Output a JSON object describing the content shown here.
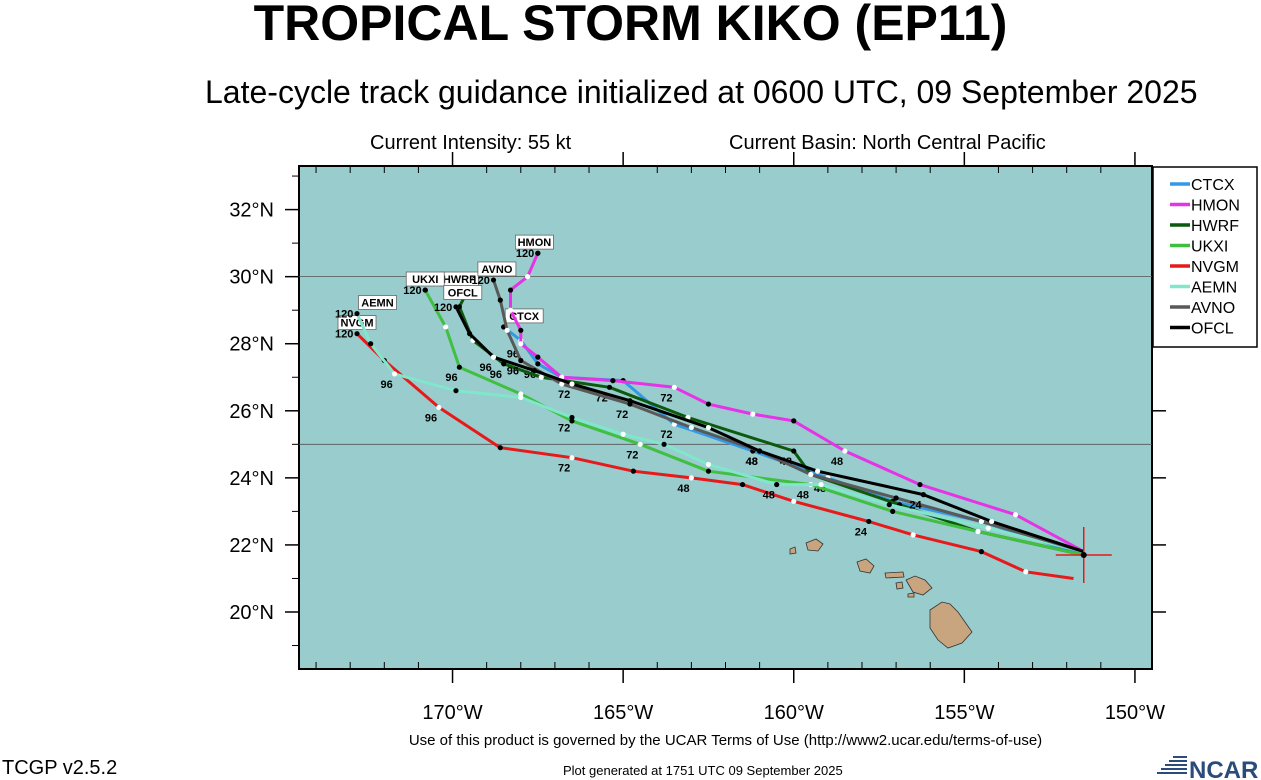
{
  "header": {
    "title": "TROPICAL STORM KIKO (EP11)",
    "subtitle": "Late-cycle track guidance initialized at 0600 UTC, 09 September 2025",
    "intensity": "Current Intensity: 55 kt",
    "basin": "Current Basin: North Central Pacific"
  },
  "map": {
    "lon_range": [
      -174.5,
      -149.5
    ],
    "lat_range": [
      18.3,
      33.3
    ],
    "lat_ticks": [
      {
        "v": 20,
        "label": "20°N"
      },
      {
        "v": 22,
        "label": "22°N"
      },
      {
        "v": 24,
        "label": "24°N"
      },
      {
        "v": 26,
        "label": "26°N"
      },
      {
        "v": 28,
        "label": "28°N"
      },
      {
        "v": 30,
        "label": "30°N"
      },
      {
        "v": 32,
        "label": "32°N"
      }
    ],
    "lon_ticks": [
      {
        "v": -170,
        "label": "170°W"
      },
      {
        "v": -165,
        "label": "165°W"
      },
      {
        "v": -160,
        "label": "160°W"
      },
      {
        "v": -155,
        "label": "155°W"
      },
      {
        "v": -150,
        "label": "150°W"
      }
    ],
    "ocean_color": "#99cccc",
    "land_color": "#c8a57f",
    "current_position": {
      "lon": -151.5,
      "lat": 21.7
    }
  },
  "legend": [
    {
      "name": "CTCX",
      "color": "#3399e6"
    },
    {
      "name": "HMON",
      "color": "#e633e6"
    },
    {
      "name": "HWRF",
      "color": "#0d590d"
    },
    {
      "name": "UKXI",
      "color": "#40bf40"
    },
    {
      "name": "NVGM",
      "color": "#e61a1a"
    },
    {
      "name": "AEMN",
      "color": "#80e6cc"
    },
    {
      "name": "AVNO",
      "color": "#595959"
    },
    {
      "name": "OFCL",
      "color": "#000000"
    }
  ],
  "tracks": [
    {
      "name": "CTCX",
      "color": "#3399e6",
      "pts": [
        [
          -151.5,
          21.7
        ],
        [
          -154.5,
          22.7
        ],
        [
          -157.1,
          23.3
        ],
        [
          -159,
          24
        ],
        [
          -161.2,
          24.8
        ],
        [
          -163.5,
          25.6
        ],
        [
          -165,
          26.9
        ],
        [
          -166.8,
          27
        ],
        [
          -167.5,
          27.4
        ],
        [
          -168,
          28.1
        ],
        [
          -168.5,
          28.5
        ]
      ],
      "hours": [
        {
          "i": 3,
          "t": "48"
        },
        {
          "i": 5,
          "t": "72"
        },
        {
          "i": 8,
          "t": "96"
        }
      ],
      "tag": {
        "t": "CTCX",
        "lon": -167.9,
        "lat": 28.8
      }
    },
    {
      "name": "HMON",
      "color": "#e633e6",
      "pts": [
        [
          -151.5,
          21.8
        ],
        [
          -153.5,
          22.9
        ],
        [
          -156.3,
          23.8
        ],
        [
          -158.5,
          24.8
        ],
        [
          -160,
          25.7
        ],
        [
          -161.2,
          25.9
        ],
        [
          -162.5,
          26.2
        ],
        [
          -163.5,
          26.7
        ],
        [
          -165.3,
          26.9
        ],
        [
          -166.8,
          27
        ],
        [
          -167.5,
          27.6
        ],
        [
          -168,
          28
        ],
        [
          -168,
          28.4
        ],
        [
          -168.3,
          29
        ],
        [
          -168.3,
          29.6
        ],
        [
          -167.8,
          30
        ],
        [
          -167.5,
          30.7
        ]
      ],
      "hours": [
        {
          "i": 3,
          "t": "48"
        },
        {
          "i": 7,
          "t": "72"
        },
        {
          "i": 11,
          "t": "96"
        }
      ],
      "tag": {
        "t": "HMON",
        "lon": -167.6,
        "lat": 31
      },
      "tagHour": "120"
    },
    {
      "name": "HWRF",
      "color": "#0d590d",
      "pts": [
        [
          -151.5,
          21.7
        ],
        [
          -154.6,
          22.4
        ],
        [
          -156.9,
          23.2
        ],
        [
          -159.5,
          24.1
        ],
        [
          -160,
          24.8
        ],
        [
          -163.1,
          25.8
        ],
        [
          -165.4,
          26.7
        ],
        [
          -167.4,
          27
        ],
        [
          -168.5,
          27.4
        ],
        [
          -169.4,
          28.1
        ],
        [
          -169.8,
          29.1
        ],
        [
          -169.6,
          29.5
        ]
      ],
      "hours": [
        {
          "i": 4,
          "t": "48"
        },
        {
          "i": 6,
          "t": "72"
        },
        {
          "i": 8,
          "t": "96"
        }
      ],
      "tag": {
        "t": "HWRF",
        "lon": -169.8,
        "lat": 29.9
      }
    },
    {
      "name": "UKXI",
      "color": "#40bf40",
      "pts": [
        [
          -151.5,
          21.7
        ],
        [
          -154.6,
          22.4
        ],
        [
          -157.1,
          23
        ],
        [
          -159.5,
          23.8
        ],
        [
          -162.5,
          24.2
        ],
        [
          -164.5,
          25
        ],
        [
          -166.5,
          25.7
        ],
        [
          -168,
          26.5
        ],
        [
          -169.8,
          27.3
        ],
        [
          -170.2,
          28.5
        ],
        [
          -170.8,
          29.6
        ]
      ],
      "hours": [
        {
          "i": 3,
          "t": "48"
        },
        {
          "i": 5,
          "t": "72"
        },
        {
          "i": 8,
          "t": "96"
        }
      ],
      "tag": {
        "t": "UKXI",
        "lon": -170.8,
        "lat": 29.9
      },
      "tagHour": "120"
    },
    {
      "name": "NVGM",
      "color": "#e61a1a",
      "pts": [
        [
          -151.8,
          21
        ],
        [
          -153.2,
          21.2
        ],
        [
          -154.5,
          21.8
        ],
        [
          -156.5,
          22.3
        ],
        [
          -157.8,
          22.7
        ],
        [
          -160,
          23.3
        ],
        [
          -161.5,
          23.8
        ],
        [
          -163,
          24
        ],
        [
          -164.7,
          24.2
        ],
        [
          -166.5,
          24.6
        ],
        [
          -168.6,
          24.9
        ],
        [
          -170.4,
          26.1
        ],
        [
          -172,
          27.5
        ],
        [
          -172.8,
          28.3
        ]
      ],
      "hours": [
        {
          "i": 4,
          "t": "24"
        },
        {
          "i": 7,
          "t": "48"
        },
        {
          "i": 9,
          "t": "72"
        },
        {
          "i": 11,
          "t": "96"
        }
      ],
      "tag": {
        "t": "NVGM",
        "lon": -172.8,
        "lat": 28.6
      },
      "tagHour": "120"
    },
    {
      "name": "AEMN",
      "color": "#80e6cc",
      "pts": [
        [
          -151.5,
          21.8
        ],
        [
          -154.3,
          22.5
        ],
        [
          -157.2,
          23.2
        ],
        [
          -159.2,
          23.8
        ],
        [
          -160.5,
          23.8
        ],
        [
          -162.5,
          24.4
        ],
        [
          -163.8,
          25
        ],
        [
          -165,
          25.3
        ],
        [
          -166.5,
          25.8
        ],
        [
          -168,
          26.4
        ],
        [
          -169.9,
          26.6
        ],
        [
          -171.7,
          27.1
        ],
        [
          -172.4,
          28
        ],
        [
          -172.8,
          28.9
        ]
      ],
      "hours": [
        {
          "i": 4,
          "t": "48"
        },
        {
          "i": 8,
          "t": "72"
        },
        {
          "i": 11,
          "t": "96"
        }
      ],
      "tag": {
        "t": "AEMN",
        "lon": -172.2,
        "lat": 29.2
      },
      "tagHour": "120"
    },
    {
      "name": "AVNO",
      "color": "#595959",
      "pts": [
        [
          -151.5,
          21.8
        ],
        [
          -154.5,
          22.7
        ],
        [
          -157,
          23.4
        ],
        [
          -159.5,
          24.1
        ],
        [
          -161,
          24.8
        ],
        [
          -163,
          25.5
        ],
        [
          -164.8,
          26.2
        ],
        [
          -166.8,
          26.8
        ],
        [
          -168,
          27.5
        ],
        [
          -168.4,
          28.4
        ],
        [
          -168.6,
          29.3
        ],
        [
          -168.8,
          29.9
        ]
      ],
      "hours": [
        {
          "i": 4,
          "t": "48"
        },
        {
          "i": 6,
          "t": "72"
        },
        {
          "i": 8,
          "t": "96"
        }
      ],
      "tag": {
        "t": "AVNO",
        "lon": -168.7,
        "lat": 30.2
      },
      "tagHour": "120"
    },
    {
      "name": "OFCL",
      "color": "#000000",
      "pts": [
        [
          -151.5,
          21.8
        ],
        [
          -154.2,
          22.7
        ],
        [
          -156.2,
          23.5
        ],
        [
          -159.3,
          24.2
        ],
        [
          -161,
          24.8
        ],
        [
          -162.5,
          25.5
        ],
        [
          -164.8,
          26.3
        ],
        [
          -166.5,
          26.8
        ],
        [
          -167.6,
          27.2
        ],
        [
          -168.8,
          27.6
        ],
        [
          -169.5,
          28.3
        ],
        [
          -169.9,
          29.1
        ]
      ],
      "hours": [
        {
          "i": 2,
          "t": "24"
        },
        {
          "i": 4,
          "t": "48"
        },
        {
          "i": 7,
          "t": "72"
        },
        {
          "i": 9,
          "t": "96"
        }
      ],
      "tag": {
        "t": "OFCL",
        "lon": -169.7,
        "lat": 29.5
      },
      "tagHour": "120"
    }
  ],
  "footer": {
    "terms": "Use of this product is governed by the UCAR Terms of Use (http://www2.ucar.edu/terms-of-use)",
    "version": "TCGP v2.5.2",
    "generated": "Plot generated at 1751 UTC   09 September 2025",
    "logo_text": "NCAR"
  }
}
